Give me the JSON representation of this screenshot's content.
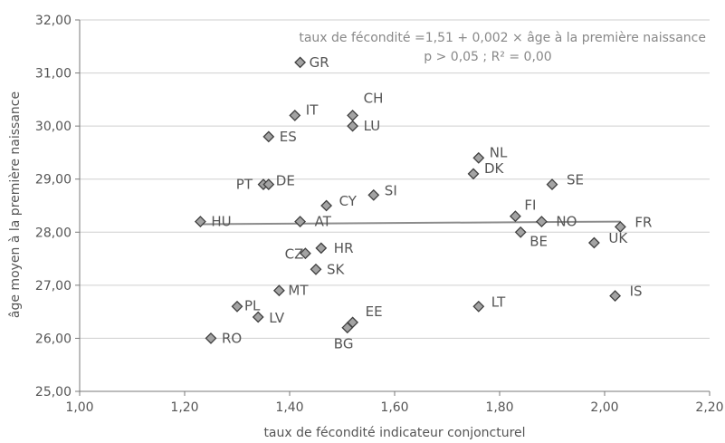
{
  "chart_data": {
    "type": "scatter",
    "title": "",
    "xlabel": "taux de fécondité indicateur conjoncturel",
    "ylabel": "âge moyen à la première naissance",
    "xlim": [
      1.0,
      2.2
    ],
    "ylim": [
      25.0,
      32.0
    ],
    "x_ticks": [
      "1,00",
      "1,20",
      "1,40",
      "1,60",
      "1,80",
      "2,00",
      "2,20"
    ],
    "y_ticks": [
      "25,00",
      "26,00",
      "27,00",
      "28,00",
      "29,00",
      "30,00",
      "31,00",
      "32,00"
    ],
    "grid": "horizontal",
    "annotation_line1": "taux de fécondité =1,51 + 0,002 × âge à la première naissance",
    "annotation_line2": "p > 0,05 ;  R² = 0,00",
    "trendline": {
      "x": [
        1.23,
        2.03
      ],
      "y": [
        28.15,
        28.2
      ]
    },
    "points": [
      {
        "label": "GR",
        "x": 1.42,
        "y": 31.2
      },
      {
        "label": "IT",
        "x": 1.41,
        "y": 30.2
      },
      {
        "label": "CH",
        "x": 1.52,
        "y": 30.2
      },
      {
        "label": "LU",
        "x": 1.52,
        "y": 30.0
      },
      {
        "label": "ES",
        "x": 1.36,
        "y": 29.8
      },
      {
        "label": "NL",
        "x": 1.76,
        "y": 29.4
      },
      {
        "label": "DK",
        "x": 1.75,
        "y": 29.1
      },
      {
        "label": "SE",
        "x": 1.9,
        "y": 28.9
      },
      {
        "label": "PT",
        "x": 1.35,
        "y": 28.9
      },
      {
        "label": "DE",
        "x": 1.36,
        "y": 28.9
      },
      {
        "label": "SI",
        "x": 1.56,
        "y": 28.7
      },
      {
        "label": "CY",
        "x": 1.47,
        "y": 28.5
      },
      {
        "label": "FI",
        "x": 1.83,
        "y": 28.3
      },
      {
        "label": "HU",
        "x": 1.23,
        "y": 28.2
      },
      {
        "label": "AT",
        "x": 1.42,
        "y": 28.2
      },
      {
        "label": "NO",
        "x": 1.88,
        "y": 28.2
      },
      {
        "label": "FR",
        "x": 2.03,
        "y": 28.1
      },
      {
        "label": "BE",
        "x": 1.84,
        "y": 28.0
      },
      {
        "label": "UK",
        "x": 1.98,
        "y": 27.8
      },
      {
        "label": "HR",
        "x": 1.46,
        "y": 27.7
      },
      {
        "label": "CZ",
        "x": 1.43,
        "y": 27.6
      },
      {
        "label": "SK",
        "x": 1.45,
        "y": 27.3
      },
      {
        "label": "MT",
        "x": 1.38,
        "y": 26.9
      },
      {
        "label": "IS",
        "x": 2.02,
        "y": 26.8
      },
      {
        "label": "PL",
        "x": 1.3,
        "y": 26.6
      },
      {
        "label": "LT",
        "x": 1.76,
        "y": 26.6
      },
      {
        "label": "LV",
        "x": 1.34,
        "y": 26.4
      },
      {
        "label": "EE",
        "x": 1.52,
        "y": 26.3
      },
      {
        "label": "BG",
        "x": 1.51,
        "y": 26.2
      },
      {
        "label": "RO",
        "x": 1.25,
        "y": 26.0
      }
    ],
    "colors": {
      "marker_fill": "#a3a3a3",
      "marker_stroke": "#3f3f3f",
      "trendline": "#8c8c8c",
      "grid": "#cfcfcf",
      "axis": "#7a7a7a"
    }
  }
}
